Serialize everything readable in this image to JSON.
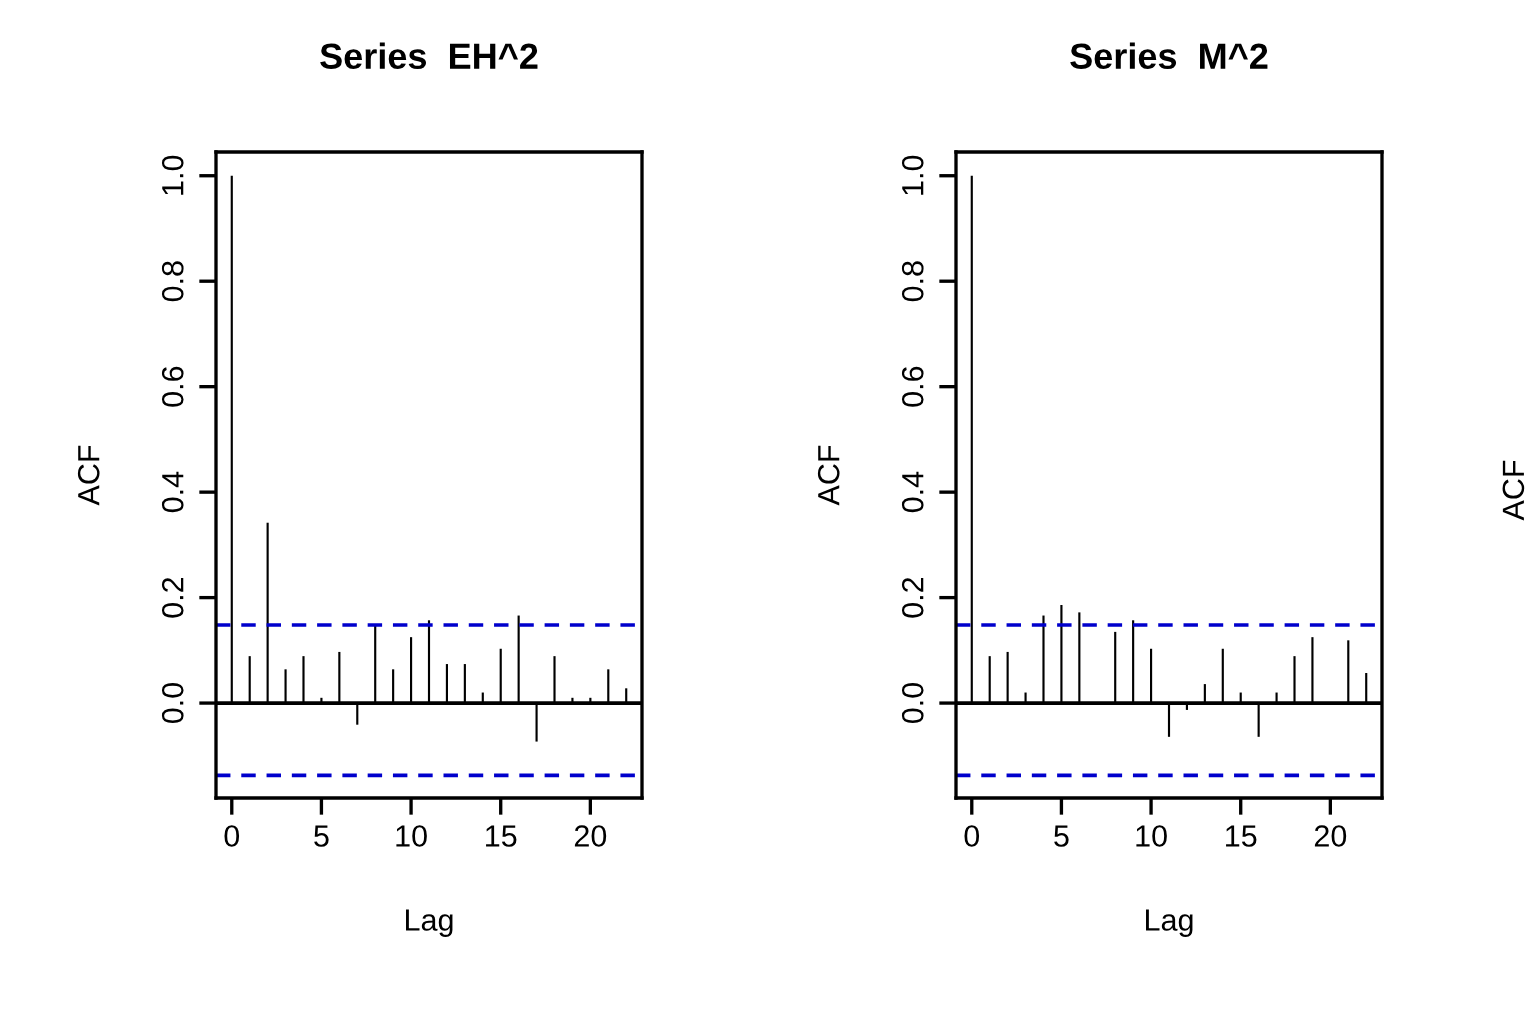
{
  "chart_data": [
    {
      "type": "bar",
      "title": "Series  EH^2",
      "xlabel": "Lag",
      "ylabel": "ACF",
      "x": [
        0,
        1,
        2,
        3,
        4,
        5,
        6,
        7,
        8,
        9,
        10,
        11,
        12,
        13,
        14,
        15,
        16,
        17,
        18,
        19,
        20,
        21,
        22
      ],
      "values": [
        1.0,
        0.089,
        0.342,
        0.064,
        0.089,
        0.01,
        0.097,
        -0.041,
        0.148,
        0.064,
        0.125,
        0.157,
        0.074,
        0.074,
        0.02,
        0.103,
        0.166,
        -0.073,
        0.089,
        0.01,
        0.01,
        0.064,
        0.028
      ],
      "color": "#000000",
      "xlim": [
        -0.88,
        22.88
      ],
      "ylim": [
        -0.18,
        1.045
      ],
      "xticks": [
        0,
        5,
        10,
        15,
        20
      ],
      "yticks": [
        {
          "value": 0,
          "label": "0.0"
        },
        {
          "value": 0.2,
          "label": "0.2"
        },
        {
          "value": 0.4,
          "label": "0.4"
        },
        {
          "value": 0.6,
          "label": "0.6"
        },
        {
          "value": 0.8,
          "label": "0.8"
        },
        {
          "value": 1.0,
          "label": "1.0"
        }
      ],
      "ref_lines": [
        {
          "axis": "y",
          "value": 0,
          "color": "#000000",
          "line_style": "solid"
        },
        {
          "axis": "y",
          "value": 0.148,
          "color": "#0000cc",
          "line_style": "dashed"
        },
        {
          "axis": "y",
          "value": -0.137,
          "color": "#0000cc",
          "line_style": "dashed"
        }
      ],
      "grid": false,
      "legend": false
    },
    {
      "type": "bar",
      "title": "Series  M^2",
      "xlabel": "Lag",
      "ylabel": "ACF",
      "x": [
        0,
        1,
        2,
        3,
        4,
        5,
        6,
        7,
        8,
        9,
        10,
        11,
        12,
        13,
        14,
        15,
        16,
        17,
        18,
        19,
        20,
        21,
        22
      ],
      "values": [
        1.0,
        0.089,
        0.097,
        0.02,
        0.166,
        0.186,
        0.172,
        0.0,
        0.135,
        0.157,
        0.103,
        -0.064,
        -0.013,
        0.036,
        0.103,
        0.02,
        -0.064,
        0.02,
        0.089,
        0.125,
        0.0,
        0.119,
        0.057
      ],
      "color": "#000000",
      "xlim": [
        -0.88,
        22.88
      ],
      "ylim": [
        -0.18,
        1.045
      ],
      "xticks": [
        0,
        5,
        10,
        15,
        20
      ],
      "yticks": [
        {
          "value": 0,
          "label": "0.0"
        },
        {
          "value": 0.2,
          "label": "0.2"
        },
        {
          "value": 0.4,
          "label": "0.4"
        },
        {
          "value": 0.6,
          "label": "0.6"
        },
        {
          "value": 0.8,
          "label": "0.8"
        },
        {
          "value": 1.0,
          "label": "1.0"
        }
      ],
      "ref_lines": [
        {
          "axis": "y",
          "value": 0,
          "color": "#000000",
          "line_style": "solid"
        },
        {
          "axis": "y",
          "value": 0.148,
          "color": "#0000cc",
          "line_style": "dashed"
        },
        {
          "axis": "y",
          "value": -0.137,
          "color": "#0000cc",
          "line_style": "dashed"
        }
      ],
      "grid": false,
      "legend": false
    },
    {
      "type": "other",
      "ylabel": "ACF"
    }
  ]
}
